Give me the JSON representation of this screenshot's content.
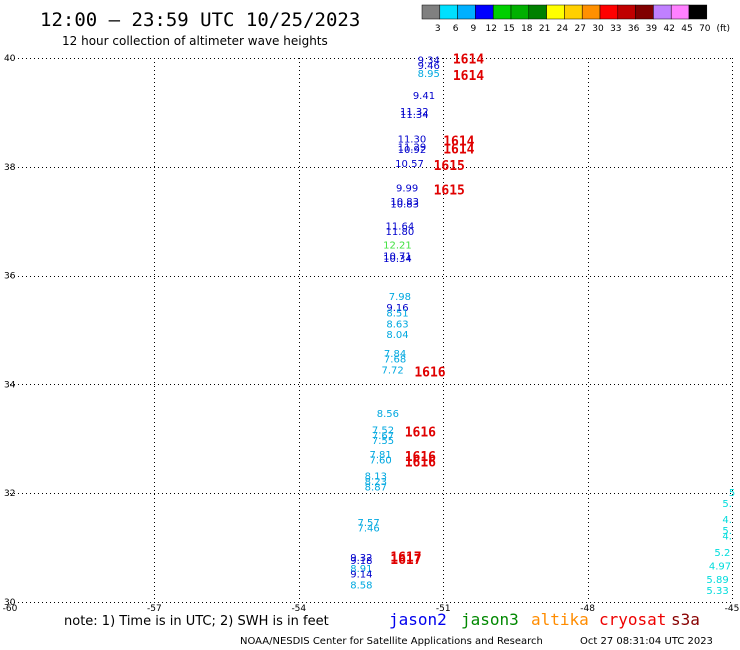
{
  "header": {
    "title": "12:00 – 23:59 UTC 10/25/2023",
    "subtitle": "12 hour collection of altimeter wave heights"
  },
  "legend": {
    "colors": [
      "#808080",
      "#00e0ff",
      "#00b0ff",
      "#0000ff",
      "#00d000",
      "#00b000",
      "#008000",
      "#ffff00",
      "#ffd000",
      "#ff9000",
      "#ff0000",
      "#c00000",
      "#800000",
      "#c080ff",
      "#ff80ff",
      "#000000"
    ],
    "labels": [
      "3",
      "6",
      "9",
      "12",
      "15",
      "18",
      "21",
      "24",
      "27",
      "30",
      "33",
      "36",
      "39",
      "42",
      "45",
      "70"
    ],
    "unit": "(ft)"
  },
  "footer": {
    "note": "note: 1) Time is in UTC; 2) SWH is in feet",
    "satellites": [
      {
        "name": "jason2",
        "color": "#0000ee"
      },
      {
        "name": "jason3",
        "color": "#008800"
      },
      {
        "name": "altika",
        "color": "#ff8c00"
      },
      {
        "name": "cryosat",
        "color": "#ee0000"
      },
      {
        "name": "s3a",
        "color": "#880000"
      }
    ],
    "credit": "NOAA/NESDIS Center for Satellite Applications and Research",
    "timestamp": "Oct 27 08:31:04 UTC 2023"
  },
  "chart_data": {
    "type": "scatter",
    "title": "12:00 – 23:59 UTC 10/25/2023",
    "subtitle": "12 hour collection of altimeter wave heights",
    "xlim": [
      -60,
      -45
    ],
    "ylim": [
      30,
      40
    ],
    "xticks": [
      "-60",
      "-57",
      "-54",
      "-51",
      "-48",
      "-45"
    ],
    "yticks": [
      "30",
      "32",
      "34",
      "36",
      "38",
      "40"
    ],
    "grid": true,
    "observations": [
      {
        "lon": -51.3,
        "lat": 39.9,
        "value": "9.34",
        "color": "#0000cc"
      },
      {
        "lon": -51.3,
        "lat": 39.8,
        "value": "9.46",
        "color": "#0000cc"
      },
      {
        "lon": -51.3,
        "lat": 39.65,
        "value": "8.95",
        "color": "#00a8e0"
      },
      {
        "lon": -51.4,
        "lat": 39.25,
        "value": "9.41",
        "color": "#0000cc"
      },
      {
        "lon": -51.6,
        "lat": 38.95,
        "value": "11.32",
        "color": "#0000cc"
      },
      {
        "lon": -51.6,
        "lat": 38.9,
        "value": "11.34",
        "color": "#0000cc"
      },
      {
        "lon": -51.65,
        "lat": 38.45,
        "value": "11.30",
        "color": "#0000cc"
      },
      {
        "lon": -51.65,
        "lat": 38.3,
        "value": "11.29",
        "color": "#0000cc"
      },
      {
        "lon": -51.65,
        "lat": 38.25,
        "value": "10.92",
        "color": "#0000cc"
      },
      {
        "lon": -51.7,
        "lat": 38.0,
        "value": "10.57",
        "color": "#0000cc"
      },
      {
        "lon": -51.75,
        "lat": 37.55,
        "value": "9.99",
        "color": "#0000cc"
      },
      {
        "lon": -51.8,
        "lat": 37.3,
        "value": "10.83",
        "color": "#0000cc"
      },
      {
        "lon": -51.8,
        "lat": 37.25,
        "value": "10.83",
        "color": "#0000cc"
      },
      {
        "lon": -51.9,
        "lat": 36.85,
        "value": "11.64",
        "color": "#0000cc"
      },
      {
        "lon": -51.9,
        "lat": 36.75,
        "value": "11.80",
        "color": "#0000cc"
      },
      {
        "lon": -51.95,
        "lat": 36.5,
        "value": "12.21",
        "color": "#40e040"
      },
      {
        "lon": -51.95,
        "lat": 36.3,
        "value": "10.71",
        "color": "#0000cc"
      },
      {
        "lon": -51.95,
        "lat": 36.25,
        "value": "10.34",
        "color": "#0000cc"
      },
      {
        "lon": -51.9,
        "lat": 35.55,
        "value": "7.98",
        "color": "#00a8e0"
      },
      {
        "lon": -51.95,
        "lat": 35.35,
        "value": "9.16",
        "color": "#0000cc"
      },
      {
        "lon": -51.95,
        "lat": 35.25,
        "value": "8.51",
        "color": "#00a8e0"
      },
      {
        "lon": -51.95,
        "lat": 35.05,
        "value": "8.63",
        "color": "#00a8e0"
      },
      {
        "lon": -51.95,
        "lat": 34.85,
        "value": "8.04",
        "color": "#00a8e0"
      },
      {
        "lon": -52.0,
        "lat": 34.5,
        "value": "7.84",
        "color": "#00a8e0"
      },
      {
        "lon": -52.0,
        "lat": 34.4,
        "value": "7.68",
        "color": "#00a8e0"
      },
      {
        "lon": -52.05,
        "lat": 34.2,
        "value": "7.72",
        "color": "#00a8e0"
      },
      {
        "lon": -52.15,
        "lat": 33.4,
        "value": "8.56",
        "color": "#00a8e0"
      },
      {
        "lon": -52.25,
        "lat": 33.1,
        "value": "7.52",
        "color": "#00a8e0"
      },
      {
        "lon": -52.25,
        "lat": 33.0,
        "value": "7.67",
        "color": "#00a8e0"
      },
      {
        "lon": -52.25,
        "lat": 32.9,
        "value": "7.55",
        "color": "#00a8e0"
      },
      {
        "lon": -52.3,
        "lat": 32.65,
        "value": "7.81",
        "color": "#00a8e0"
      },
      {
        "lon": -52.3,
        "lat": 32.55,
        "value": "7.60",
        "color": "#00a8e0"
      },
      {
        "lon": -52.4,
        "lat": 32.25,
        "value": "8.13",
        "color": "#00a8e0"
      },
      {
        "lon": -52.4,
        "lat": 32.15,
        "value": "8.23",
        "color": "#00a8e0"
      },
      {
        "lon": -52.4,
        "lat": 32.05,
        "value": "8.87",
        "color": "#00a8e0"
      },
      {
        "lon": -52.55,
        "lat": 31.4,
        "value": "7.57",
        "color": "#00a8e0"
      },
      {
        "lon": -52.55,
        "lat": 31.3,
        "value": "7.46",
        "color": "#00a8e0"
      },
      {
        "lon": -52.7,
        "lat": 30.75,
        "value": "9.32",
        "color": "#0000cc"
      },
      {
        "lon": -52.7,
        "lat": 30.7,
        "value": "9.18",
        "color": "#0000cc"
      },
      {
        "lon": -52.7,
        "lat": 30.55,
        "value": "8.91",
        "color": "#00a8e0"
      },
      {
        "lon": -52.7,
        "lat": 30.45,
        "value": "9.14",
        "color": "#0000cc"
      },
      {
        "lon": -52.7,
        "lat": 30.25,
        "value": "8.58",
        "color": "#00a8e0"
      },
      {
        "lon": -45.0,
        "lat": 31.95,
        "value": "5",
        "color": "#00dcdc"
      },
      {
        "lon": -45.1,
        "lat": 31.75,
        "value": "5.",
        "color": "#00dcdc"
      },
      {
        "lon": -45.1,
        "lat": 31.45,
        "value": "4.",
        "color": "#00dcdc"
      },
      {
        "lon": -45.1,
        "lat": 31.25,
        "value": "5.",
        "color": "#00dcdc"
      },
      {
        "lon": -45.1,
        "lat": 31.15,
        "value": "4.",
        "color": "#00dcdc"
      },
      {
        "lon": -45.2,
        "lat": 30.85,
        "value": "5.2",
        "color": "#00dcdc"
      },
      {
        "lon": -45.25,
        "lat": 30.6,
        "value": "4.97",
        "color": "#00dcdc"
      },
      {
        "lon": -45.3,
        "lat": 30.35,
        "value": "5.89",
        "color": "#00dcdc"
      },
      {
        "lon": -45.3,
        "lat": 30.15,
        "value": "5.33",
        "color": "#00dcdc"
      }
    ],
    "cyclone_labels": [
      {
        "lon": -50.8,
        "lat": 39.95,
        "label": "1614"
      },
      {
        "lon": -50.8,
        "lat": 39.65,
        "label": "1614"
      },
      {
        "lon": -51.0,
        "lat": 38.45,
        "label": "1614"
      },
      {
        "lon": -51.0,
        "lat": 38.3,
        "label": "1614"
      },
      {
        "lon": -51.2,
        "lat": 38.0,
        "label": "1615"
      },
      {
        "lon": -51.2,
        "lat": 37.55,
        "label": "1615"
      },
      {
        "lon": -51.6,
        "lat": 34.2,
        "label": "1616"
      },
      {
        "lon": -51.8,
        "lat": 33.1,
        "label": "1616"
      },
      {
        "lon": -51.8,
        "lat": 32.65,
        "label": "1616"
      },
      {
        "lon": -51.8,
        "lat": 32.55,
        "label": "1616"
      },
      {
        "lon": -52.1,
        "lat": 30.8,
        "label": "1617"
      },
      {
        "lon": -52.1,
        "lat": 30.75,
        "label": "1617"
      }
    ]
  }
}
